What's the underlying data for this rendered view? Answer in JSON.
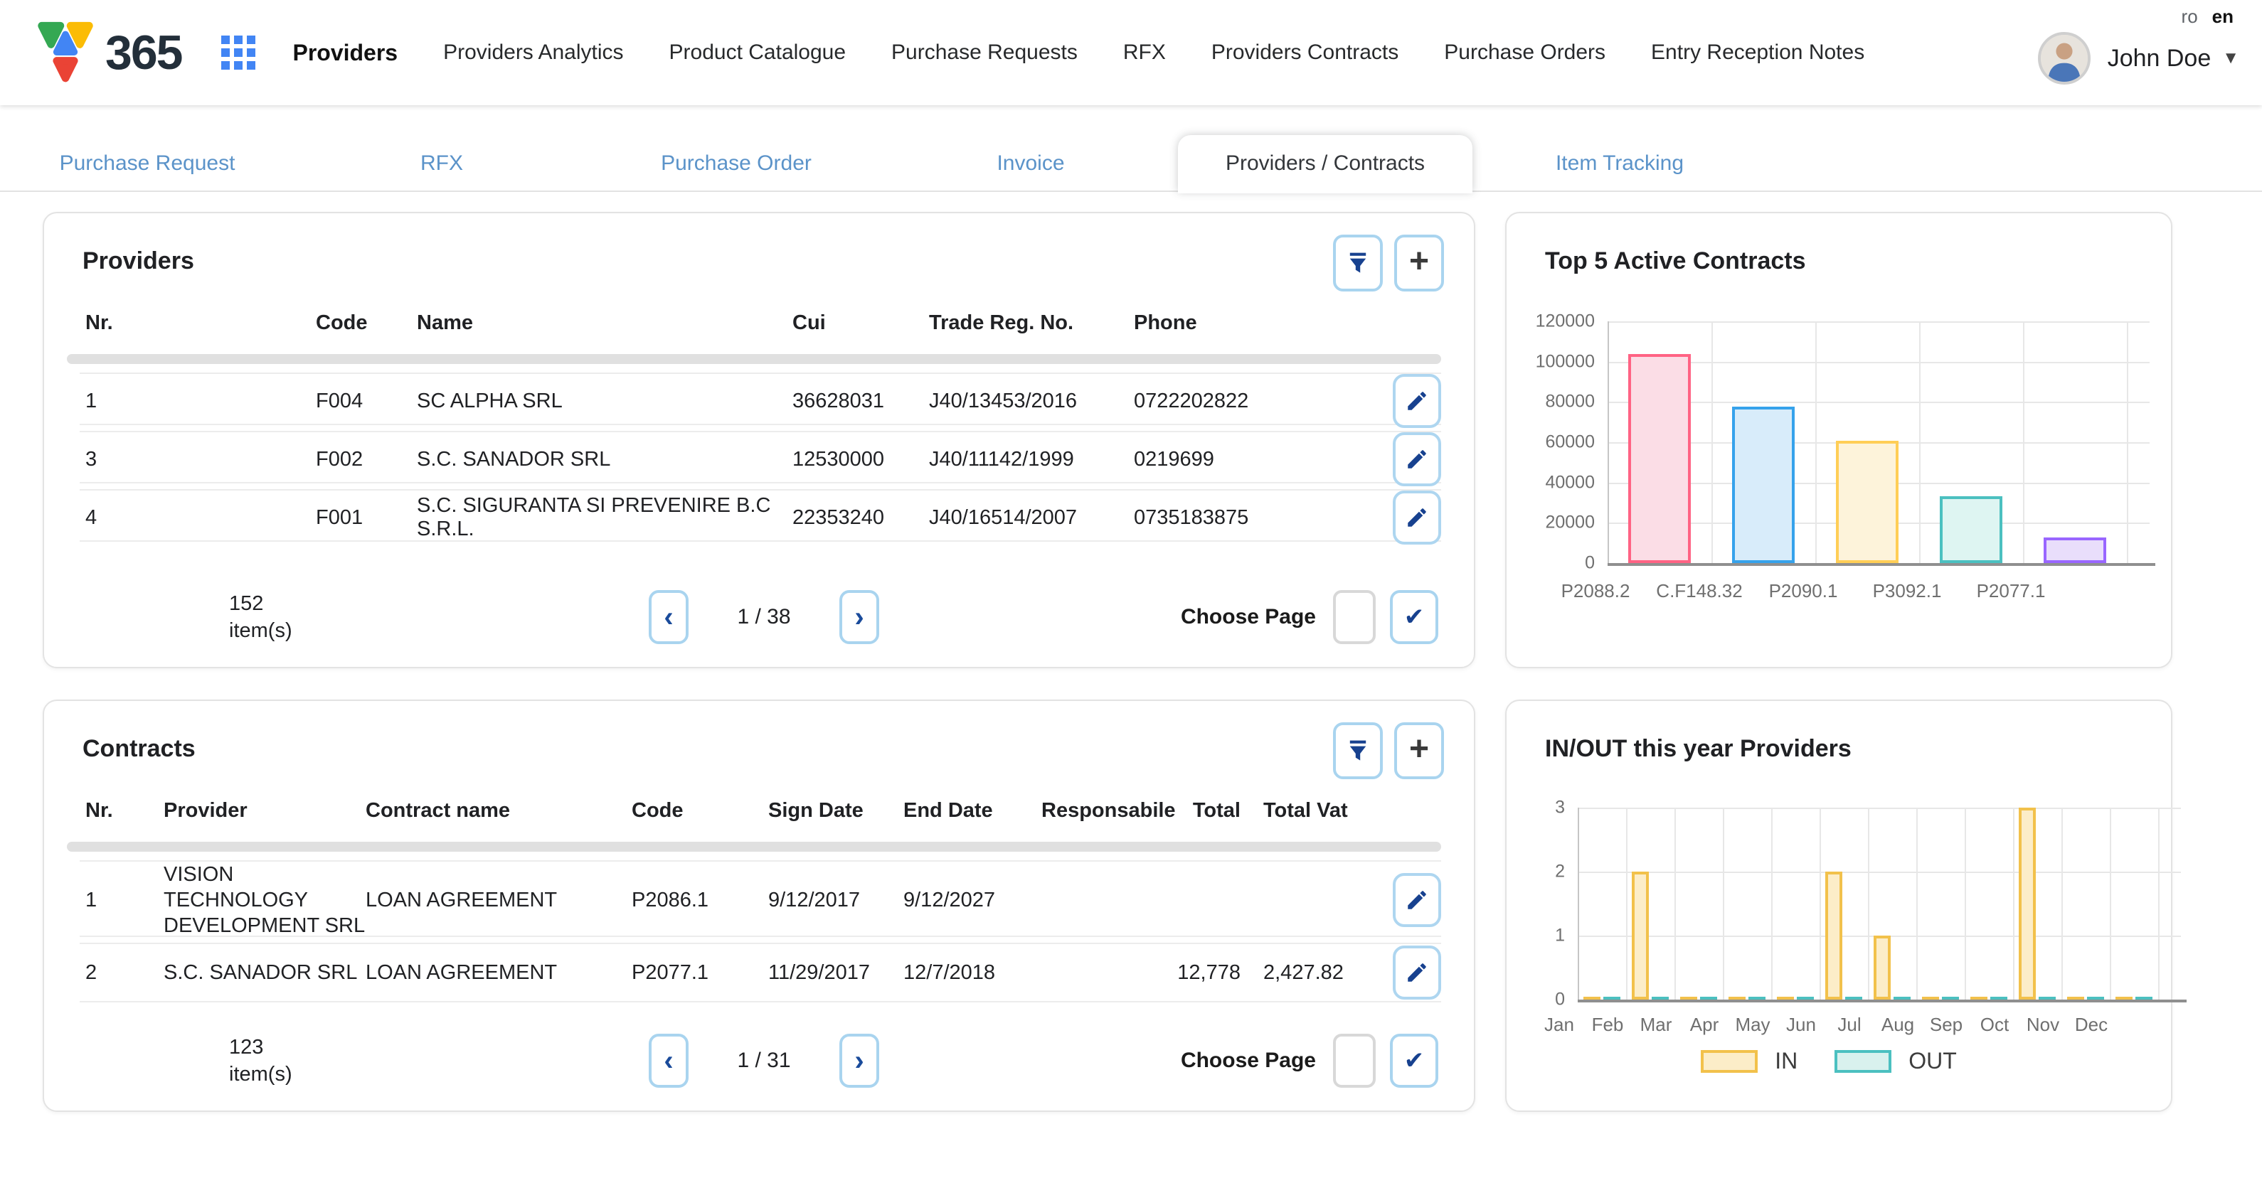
{
  "header": {
    "logo_text": "365",
    "nav": [
      {
        "label": "Providers",
        "active": true
      },
      {
        "label": "Providers Analytics",
        "active": false
      },
      {
        "label": "Product Catalogue",
        "active": false
      },
      {
        "label": "Purchase Requests",
        "active": false
      },
      {
        "label": "RFX",
        "active": false
      },
      {
        "label": "Providers Contracts",
        "active": false
      },
      {
        "label": "Purchase Orders",
        "active": false
      },
      {
        "label": "Entry Reception Notes",
        "active": false
      }
    ],
    "lang_ro": "ro",
    "lang_en": "en",
    "user_name": "John Doe"
  },
  "tabs": [
    {
      "label": "Purchase Request",
      "active": false
    },
    {
      "label": "RFX",
      "active": false
    },
    {
      "label": "Purchase Order",
      "active": false
    },
    {
      "label": "Invoice",
      "active": false
    },
    {
      "label": "Providers / Contracts",
      "active": true
    },
    {
      "label": "Item Tracking",
      "active": false
    }
  ],
  "providers_panel": {
    "title": "Providers",
    "columns": [
      "Nr.",
      "Code",
      "Name",
      "Cui",
      "Trade Reg. No.",
      "Phone"
    ],
    "rows": [
      {
        "nr": "1",
        "code": "F004",
        "name": "SC ALPHA SRL",
        "cui": "36628031",
        "trade_reg": "J40/13453/2016",
        "phone": "0722202822"
      },
      {
        "nr": "3",
        "code": "F002",
        "name": "S.C. SANADOR SRL",
        "cui": "12530000",
        "trade_reg": "J40/11142/1999",
        "phone": "0219699"
      },
      {
        "nr": "4",
        "code": "F001",
        "name": "S.C. SIGURANTA SI PREVENIRE B.C S.R.L.",
        "cui": "22353240",
        "trade_reg": "J40/16514/2007",
        "phone": "0735183875"
      }
    ],
    "pagination": {
      "count": "152",
      "items_label": "item(s)",
      "page_indicator": "1 / 38",
      "choose_page_label": "Choose Page",
      "input_value": ""
    }
  },
  "contracts_panel": {
    "title": "Contracts",
    "columns": [
      "Nr.",
      "Provider",
      "Contract name",
      "Code",
      "Sign Date",
      "End Date",
      "Responsabile",
      "Total",
      "Total Vat"
    ],
    "rows": [
      {
        "nr": "1",
        "provider": "VISION TECHNOLOGY DEVELOPMENT SRL",
        "contract_name": "LOAN AGREEMENT",
        "code": "P2086.1",
        "sign_date": "9/12/2017",
        "end_date": "9/12/2027",
        "responsabile": "",
        "total": "",
        "total_vat": ""
      },
      {
        "nr": "2",
        "provider": "S.C. SANADOR SRL",
        "contract_name": "LOAN AGREEMENT",
        "code": "P2077.1",
        "sign_date": "11/29/2017",
        "end_date": "12/7/2018",
        "responsabile": "",
        "total": "12,778",
        "total_vat": "2,427.82"
      }
    ],
    "pagination": {
      "count": "123",
      "items_label": "item(s)",
      "page_indicator": "1 / 31",
      "choose_page_label": "Choose Page",
      "input_value": ""
    }
  },
  "chart_data": [
    {
      "type": "bar",
      "title": "Top 5 Active Contracts",
      "categories": [
        "P2088.2",
        "C.F148.32",
        "P2090.1",
        "P3092.1",
        "P2077.1"
      ],
      "values": [
        104000,
        77500,
        60500,
        33500,
        12700
      ],
      "ylim": [
        0,
        120000
      ],
      "yticks": [
        0,
        20000,
        40000,
        60000,
        80000,
        100000,
        120000
      ],
      "grid": true,
      "bar_colors": [
        {
          "border": "#FF6384",
          "fill": "#fbdde6"
        },
        {
          "border": "#36A2EB",
          "fill": "#d8ecfa"
        },
        {
          "border": "#FFCE56",
          "fill": "#fdf3da"
        },
        {
          "border": "#4BC0C0",
          "fill": "#def5f2"
        },
        {
          "border": "#9966FF",
          "fill": "#e9defb"
        }
      ]
    },
    {
      "type": "bar",
      "title": "IN/OUT this year Providers",
      "categories": [
        "Jan",
        "Feb",
        "Mar",
        "Apr",
        "May",
        "Jun",
        "Jul",
        "Aug",
        "Sep",
        "Oct",
        "Nov",
        "Dec"
      ],
      "series": [
        {
          "name": "IN",
          "border": "#f2c14b",
          "fill": "#fcedc8",
          "values": [
            0,
            2,
            0,
            0,
            0,
            2,
            1,
            0,
            0,
            3,
            0,
            0
          ]
        },
        {
          "name": "OUT",
          "border": "#4BC0C0",
          "fill": "#d9f1ee",
          "values": [
            0,
            0,
            0,
            0,
            0,
            0,
            0,
            0,
            0,
            0,
            0,
            0
          ]
        }
      ],
      "ylim": [
        0,
        3
      ],
      "yticks": [
        0,
        1,
        2,
        3
      ],
      "grid": true,
      "legend_position": "bottom"
    }
  ]
}
